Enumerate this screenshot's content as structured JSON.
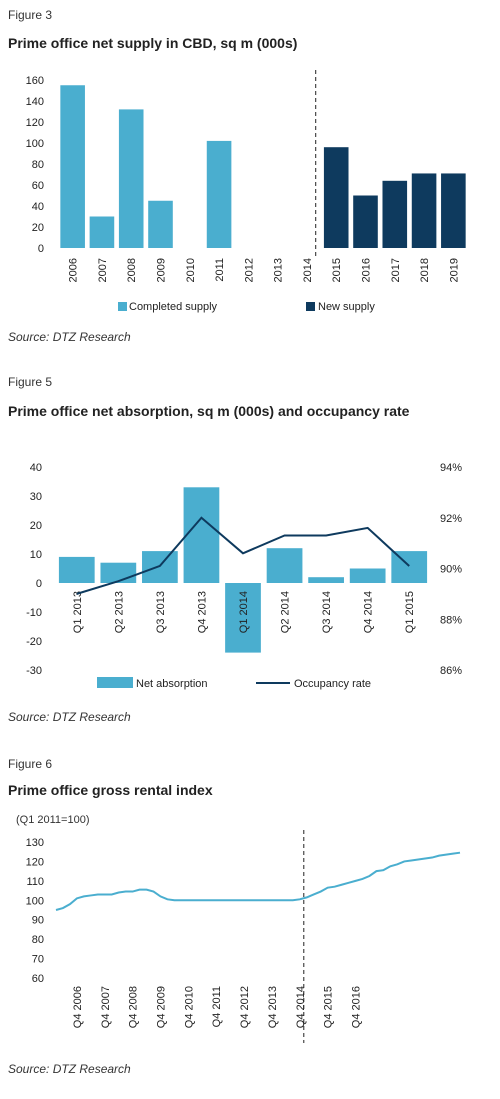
{
  "fig3": {
    "label": "Figure 3",
    "title": "Prime office net supply in CBD, sq m (000s)",
    "source": "Source: DTZ Research",
    "chart_data": {
      "type": "bar",
      "categories": [
        "2006",
        "2007",
        "2008",
        "2009",
        "2010",
        "2011",
        "2012",
        "2013",
        "2014",
        "2015",
        "2016",
        "2017",
        "2018",
        "2019"
      ],
      "series": [
        {
          "name": "Completed supply",
          "color": "#4aaecf",
          "values": [
            155,
            30,
            132,
            45,
            0,
            102,
            0,
            0,
            0,
            null,
            null,
            null,
            null,
            null
          ]
        },
        {
          "name": "New supply",
          "color": "#0e3a5e",
          "values": [
            null,
            null,
            null,
            null,
            null,
            null,
            null,
            null,
            null,
            96,
            50,
            64,
            71,
            71
          ]
        }
      ],
      "yticks": [
        0,
        20,
        40,
        60,
        80,
        100,
        120,
        140,
        160
      ],
      "ylim": [
        0,
        160
      ],
      "divider_after": "2014",
      "legend": "bottom"
    }
  },
  "fig5": {
    "label": "Figure 5",
    "title": "Prime office net absorption, sq m (000s) and occupancy rate",
    "source": "Source: DTZ Research",
    "chart_data": {
      "type": "bar",
      "categories": [
        "Q1 2013",
        "Q2 2013",
        "Q3 2013",
        "Q4 2013",
        "Q1 2014",
        "Q2 2014",
        "Q3 2014",
        "Q4 2014",
        "Q1 2015"
      ],
      "series": [
        {
          "name": "Net absorption",
          "color": "#4aaecf",
          "axis": "left",
          "values": [
            9,
            7,
            11,
            33,
            -24,
            12,
            2,
            5,
            11
          ]
        },
        {
          "name": "Occupancy rate",
          "color": "#0e3a5e",
          "axis": "right",
          "type": "line",
          "values": [
            89.0,
            89.5,
            90.1,
            92.0,
            90.6,
            91.3,
            91.3,
            91.6,
            90.1
          ]
        }
      ],
      "yticks_left": [
        -30,
        -20,
        -10,
        0,
        10,
        20,
        30,
        40
      ],
      "ylim_left": [
        -30,
        40
      ],
      "yticks_right": [
        "86%",
        "88%",
        "90%",
        "92%",
        "94%"
      ],
      "ylim_right": [
        86,
        94
      ],
      "legend": "bottom"
    }
  },
  "fig6": {
    "label": "Figure 6",
    "title": "Prime office gross rental index",
    "unit": "(Q1 2011=100)",
    "source": "Source: DTZ Research",
    "chart_data": {
      "type": "line",
      "color": "#4aaecf",
      "xticks": [
        "Q4 2006",
        "Q4 2007",
        "Q4 2008",
        "Q4 2009",
        "Q4 2010",
        "Q4 2011",
        "Q4 2012",
        "Q4 2013",
        "Q4 2014",
        "Q4 2015",
        "Q4 2016"
      ],
      "x_quarter_start": "Q1 2006",
      "values": [
        95,
        96,
        98,
        101,
        102,
        102.5,
        103,
        103,
        103,
        104,
        104.5,
        104.5,
        105.5,
        105.5,
        104.5,
        102,
        100.5,
        100,
        100,
        100,
        100,
        100,
        100,
        100,
        100,
        100,
        100,
        100,
        100,
        100,
        100,
        100,
        100,
        100,
        100,
        100.5,
        101.5,
        103,
        104.5,
        106.5,
        107,
        108,
        109,
        110,
        111,
        112.5,
        115,
        115.5,
        117.5,
        118.5,
        120,
        120.5,
        121,
        121.5,
        122,
        123,
        123.5,
        124,
        124.5
      ],
      "yticks": [
        60,
        70,
        80,
        90,
        100,
        110,
        120,
        130
      ],
      "ylim": [
        60,
        130
      ],
      "divider_after": "Q4 2014"
    }
  }
}
